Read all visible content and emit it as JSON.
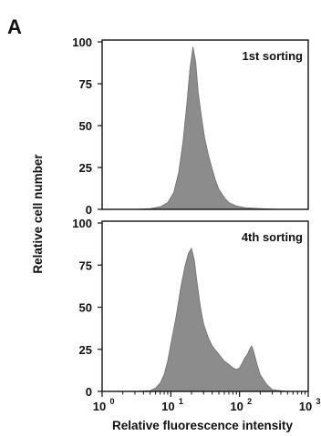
{
  "figure": {
    "panel_label": "A",
    "ylabel": "Relative cell number",
    "xlabel": "Relative fluorescence intensity"
  },
  "colors": {
    "fill": "#8c8c8c",
    "edge": "#6f6f6f",
    "frame": "#111111"
  },
  "chart_data": [
    {
      "type": "area",
      "annotation": "1st sorting",
      "xscale": "log",
      "xlim": [
        1,
        1000
      ],
      "ylim": [
        0,
        100
      ],
      "yticks": [
        0,
        25,
        50,
        75,
        100
      ],
      "x": [
        1,
        3,
        5,
        7,
        9,
        11,
        13,
        15,
        17,
        19,
        21,
        23,
        25,
        28,
        31,
        35,
        40,
        45,
        50,
        60,
        70,
        90,
        120,
        200,
        400,
        1000
      ],
      "y": [
        0,
        0,
        0.5,
        1.5,
        4,
        10,
        22,
        40,
        62,
        84,
        97,
        88,
        70,
        55,
        43,
        33,
        24,
        17,
        12,
        7,
        4,
        2,
        1,
        0.5,
        0,
        0
      ]
    },
    {
      "type": "area",
      "annotation": "4th sorting",
      "xscale": "log",
      "xlim": [
        1,
        1000
      ],
      "ylim": [
        0,
        100
      ],
      "yticks": [
        0,
        25,
        50,
        75,
        100
      ],
      "xticks": [
        "10",
        "10",
        "10",
        "10"
      ],
      "xtick_exponents": [
        "0",
        "1",
        "2",
        "3"
      ],
      "x": [
        1,
        3,
        5,
        6,
        7,
        8,
        9,
        10,
        12,
        14,
        16,
        18,
        20,
        22,
        24,
        27,
        30,
        35,
        40,
        50,
        60,
        70,
        80,
        90,
        100,
        110,
        120,
        130,
        140,
        150,
        160,
        180,
        200,
        250,
        300,
        500,
        1000
      ],
      "y": [
        0,
        0,
        0.5,
        2,
        5,
        10,
        18,
        28,
        45,
        62,
        74,
        82,
        85,
        78,
        65,
        50,
        40,
        32,
        27,
        22,
        18,
        16,
        14,
        13,
        14,
        17,
        20,
        22,
        25,
        27,
        24,
        16,
        10,
        4,
        1,
        0,
        0
      ]
    }
  ]
}
